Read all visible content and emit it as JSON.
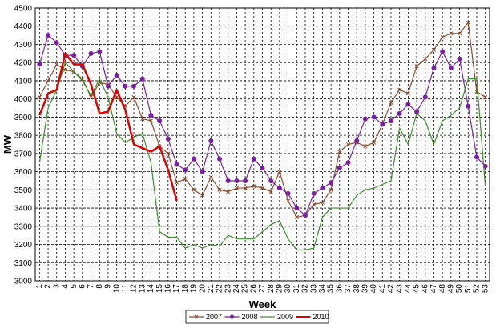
{
  "chart_data": {
    "type": "line",
    "xlabel": "Week",
    "ylabel": "MW",
    "ylim": [
      3000,
      4500
    ],
    "y_ticks": [
      3000,
      3100,
      3200,
      3300,
      3400,
      3500,
      3600,
      3700,
      3800,
      3900,
      4000,
      4100,
      4200,
      4300,
      4400,
      4500
    ],
    "x": [
      1,
      2,
      3,
      4,
      5,
      6,
      7,
      8,
      9,
      10,
      11,
      12,
      13,
      14,
      15,
      16,
      17,
      18,
      19,
      20,
      21,
      22,
      23,
      24,
      25,
      26,
      27,
      28,
      29,
      30,
      31,
      32,
      33,
      34,
      35,
      36,
      37,
      38,
      39,
      40,
      41,
      42,
      43,
      44,
      45,
      46,
      47,
      48,
      49,
      50,
      51,
      52,
      53
    ],
    "x_tick_labels": [
      "1",
      "2",
      "3",
      "4",
      "5",
      "6",
      "7",
      "8",
      "9",
      "10",
      "11",
      "12",
      "13",
      "14",
      "15",
      "16",
      "17",
      "18",
      "19",
      "20",
      "21",
      "22",
      "23",
      "24",
      "25",
      "26",
      "27",
      "28",
      "29",
      "30",
      "31",
      "32",
      "33",
      "34",
      "35",
      "36",
      "37",
      "38",
      "39",
      "40",
      "41",
      "42",
      "43",
      "44",
      "45",
      "46",
      "47",
      "48",
      "49",
      "50",
      "51",
      "52",
      "53"
    ],
    "grid": true,
    "legend_position": "bottom",
    "series": [
      {
        "name": "2007",
        "color": "#8b4a2b",
        "marker": "x",
        "values": [
          4010,
          4100,
          4190,
          4160,
          4150,
          4110,
          4010,
          4090,
          4080,
          4010,
          3960,
          4010,
          3890,
          3880,
          3740,
          3700,
          3540,
          3560,
          3500,
          3470,
          3570,
          3500,
          3490,
          3510,
          3510,
          3520,
          3510,
          3490,
          3600,
          3440,
          3350,
          3360,
          3420,
          3430,
          3500,
          3710,
          3750,
          3760,
          3740,
          3760,
          3860,
          3980,
          4050,
          4030,
          4180,
          4220,
          4270,
          4340,
          4360,
          4360,
          4420,
          4040,
          4010
        ]
      },
      {
        "name": "2008",
        "color": "#7b1fa2",
        "marker": "circle",
        "values": [
          4190,
          4350,
          4310,
          4240,
          4240,
          4180,
          4250,
          4260,
          4070,
          4130,
          4070,
          4070,
          4110,
          3910,
          3880,
          3780,
          3640,
          3610,
          3670,
          3600,
          3770,
          3670,
          3550,
          3550,
          3550,
          3670,
          3620,
          3550,
          3510,
          3480,
          3400,
          3360,
          3480,
          3510,
          3540,
          3620,
          3650,
          3770,
          3890,
          3900,
          3860,
          3880,
          3920,
          3970,
          3930,
          4010,
          4170,
          4260,
          4170,
          4220,
          3960,
          3680,
          3630
        ]
      },
      {
        "name": "2009",
        "color": "#3a8f2a",
        "marker": "none",
        "values": [
          3650,
          3950,
          4050,
          4200,
          4150,
          4100,
          4020,
          4110,
          4010,
          3810,
          3760,
          3790,
          3810,
          3650,
          3270,
          3240,
          3240,
          3180,
          3200,
          3180,
          3200,
          3190,
          3250,
          3230,
          3230,
          3230,
          3270,
          3310,
          3330,
          3230,
          3170,
          3170,
          3180,
          3350,
          3400,
          3400,
          3400,
          3470,
          3500,
          3510,
          3530,
          3550,
          3840,
          3750,
          3920,
          3880,
          3750,
          3880,
          3910,
          3950,
          4110,
          4110,
          3520
        ]
      },
      {
        "name": "2010",
        "color": "#e00000",
        "marker": "none",
        "values": [
          3910,
          4030,
          4050,
          4250,
          4190,
          4190,
          4080,
          3920,
          3930,
          4050,
          3940,
          3750,
          3730,
          3710,
          3740,
          3610,
          3440,
          null,
          null,
          null,
          null,
          null,
          null,
          null,
          null,
          null,
          null,
          null,
          null,
          null,
          null,
          null,
          null,
          null,
          null,
          null,
          null,
          null,
          null,
          null,
          null,
          null,
          null,
          null,
          null,
          null,
          null,
          null,
          null,
          null,
          null,
          null,
          null
        ]
      }
    ]
  }
}
